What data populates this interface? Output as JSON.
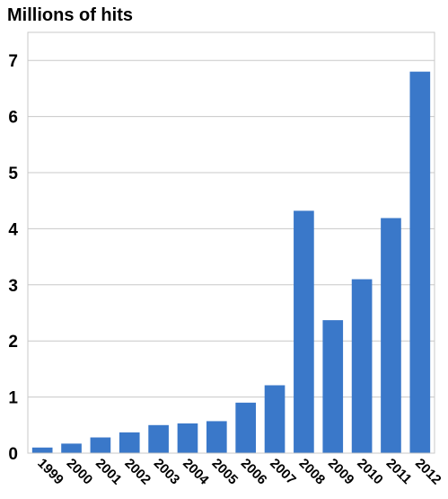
{
  "chart_data": {
    "type": "bar",
    "title": "Millions of hits",
    "xlabel": "",
    "ylabel": "",
    "categories": [
      "1999",
      "2000",
      "2001",
      "2002",
      "2003",
      "2004",
      "2005",
      "2006",
      "2007",
      "2008",
      "2009",
      "2010",
      "2011",
      "2012"
    ],
    "values": [
      0.1,
      0.17,
      0.28,
      0.37,
      0.5,
      0.53,
      0.57,
      0.9,
      1.21,
      4.32,
      2.37,
      3.1,
      4.19,
      6.8
    ],
    "ylim": [
      0,
      7.5
    ],
    "yticks": [
      0,
      1,
      2,
      3,
      4,
      5,
      6,
      7
    ],
    "grid": true,
    "colors": {
      "bar": "#3a78c9",
      "grid": "#c8c8c8",
      "axis": "#000000"
    }
  }
}
